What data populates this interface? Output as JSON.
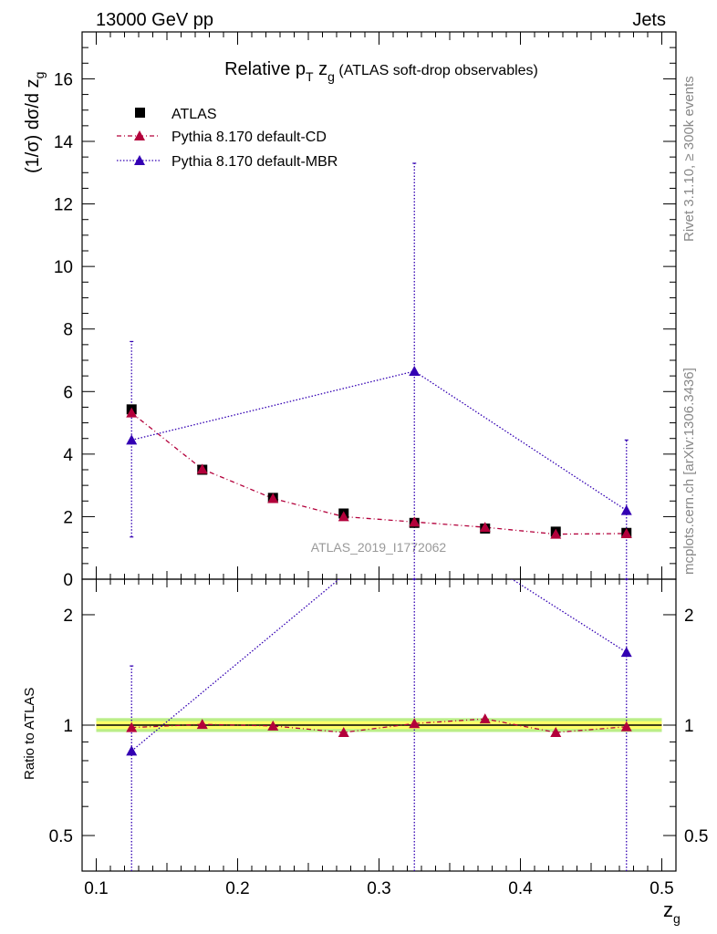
{
  "header": {
    "left": "13000 GeV pp",
    "right": "Jets"
  },
  "side_labels": {
    "rivet": "Rivet 3.1.10, ≥ 300k events",
    "mcplots": "mcplots.cern.ch [arXiv:1306.3436]"
  },
  "watermark": "ATLAS_2019_I1772062",
  "title": {
    "main": "Relative p",
    "sub1": "T",
    "mid": " z",
    "sub2": "g",
    "tail": " (ATLAS soft-drop observables)"
  },
  "legend": {
    "atlas": "ATLAS",
    "cd": "Pythia 8.170 default-CD",
    "mbr": "Pythia 8.170 default-MBR"
  },
  "axes": {
    "ylabel_main": "(1/σ) dσ/d z",
    "ylabel_main_sub": "g",
    "ylabel_ratio": "Ratio to ATLAS",
    "xlabel": "z",
    "xlabel_sub": "g"
  },
  "colors": {
    "atlas": "#000000",
    "cd": "#b3003b",
    "mbr": "#3300b3",
    "band_inner": "#ffff66",
    "band_outer": "#bbee88"
  },
  "chart_data": {
    "type": "scatter",
    "x": [
      0.125,
      0.175,
      0.225,
      0.275,
      0.325,
      0.375,
      0.425,
      0.475
    ],
    "xlim": [
      0.09,
      0.51
    ],
    "ylim_main": [
      0,
      17.5
    ],
    "ylim_ratio": [
      0.4,
      2.5
    ],
    "ratio_scale": "log",
    "x_ticks": [
      "0.1",
      "0.2",
      "0.3",
      "0.4",
      "0.5"
    ],
    "y_ticks_main": [
      "0",
      "2",
      "4",
      "6",
      "8",
      "10",
      "12",
      "14",
      "16"
    ],
    "y_ticks_ratio": [
      "0.5",
      "1",
      "2"
    ],
    "series": [
      {
        "name": "ATLAS",
        "values": [
          5.43,
          3.5,
          2.6,
          2.1,
          1.8,
          1.62,
          1.52,
          1.48
        ]
      },
      {
        "name": "Pythia 8.170 default-CD",
        "values": [
          5.32,
          3.52,
          2.58,
          2.0,
          1.83,
          1.66,
          1.44,
          1.46
        ],
        "err_main": [
          0.08,
          0.05,
          0.04,
          0.03,
          0.03,
          0.03,
          0.03,
          0.03
        ],
        "ratio": [
          0.985,
          1.005,
          0.995,
          0.955,
          1.01,
          1.04,
          0.955,
          0.99
        ],
        "err_ratio": [
          0.02,
          0.015,
          0.015,
          0.02,
          0.02,
          0.025,
          0.02,
          0.02
        ]
      },
      {
        "name": "Pythia 8.170 default-MBR",
        "values": [
          4.45,
          null,
          null,
          null,
          6.65,
          null,
          null,
          2.2
        ],
        "err_main_low": [
          3.1,
          null,
          null,
          null,
          6.65,
          null,
          null,
          2.2
        ],
        "err_main_high": [
          3.15,
          null,
          null,
          null,
          6.65,
          null,
          null,
          2.25
        ],
        "ratio": [
          0.85,
          null,
          null,
          null,
          3.7,
          null,
          null,
          1.58
        ],
        "ratio_err_low_to": [
          0.4,
          null,
          null,
          null,
          0.4,
          null,
          null,
          0.4
        ],
        "ratio_err_high_to": [
          1.45,
          null,
          null,
          null,
          2.5,
          null,
          null,
          2.5
        ]
      }
    ]
  }
}
